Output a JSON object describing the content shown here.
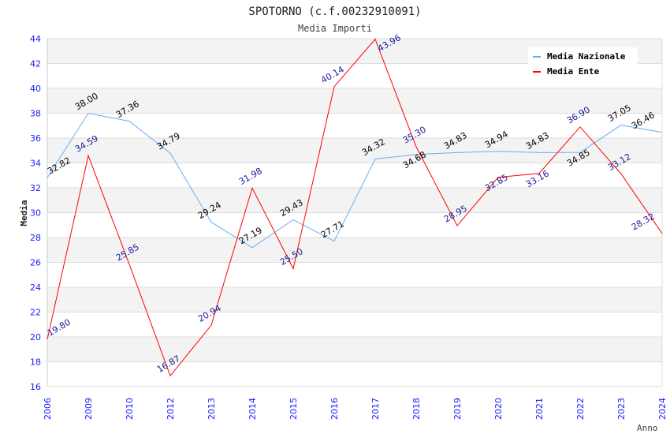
{
  "chart_data": {
    "type": "line",
    "title": "SPOTORNO (c.f.00232910091)",
    "subtitle": "Media Importi",
    "xlabel": "Anno",
    "ylabel": "Media",
    "ylim": [
      16,
      44
    ],
    "yticks": [
      "16",
      "18",
      "20",
      "22",
      "24",
      "26",
      "28",
      "30",
      "32",
      "34",
      "36",
      "38",
      "40",
      "42",
      "44"
    ],
    "categories": [
      "2006",
      "2009",
      "2010",
      "2012",
      "2013",
      "2014",
      "2015",
      "2016",
      "2017",
      "2018",
      "2019",
      "2020",
      "2021",
      "2022",
      "2023",
      "2024"
    ],
    "legend_position": "top-right",
    "series": [
      {
        "name": "Media Nazionale",
        "color": "#6aaef0",
        "label_color": "#000000",
        "values": [
          32.82,
          38.0,
          37.36,
          34.79,
          29.24,
          27.19,
          29.43,
          27.71,
          34.32,
          34.68,
          34.83,
          34.94,
          34.83,
          34.85,
          37.05,
          36.46
        ],
        "labels": [
          "32.82",
          "38.00",
          "37.36",
          "34.79",
          "29.24",
          "27.19",
          "29.43",
          "27.71",
          "34.32",
          "34.68",
          "34.83",
          "34.94",
          "34.83",
          "34.85",
          "37.05",
          "36.46"
        ]
      },
      {
        "name": "Media Ente",
        "color": "#ff0000",
        "label_color": "#1a1a99",
        "values": [
          19.8,
          34.59,
          25.85,
          16.87,
          20.94,
          31.98,
          25.5,
          40.14,
          43.96,
          35.3,
          28.95,
          32.85,
          33.16,
          36.9,
          33.12,
          28.32
        ],
        "labels": [
          "19.80",
          "34.59",
          "25.85",
          "16.87",
          "20.94",
          "31.98",
          "25.50",
          "40.14",
          "43.96",
          "35.30",
          "28.95",
          "32.85",
          "33.16",
          "36.90",
          "33.12",
          "28.32"
        ]
      }
    ]
  }
}
